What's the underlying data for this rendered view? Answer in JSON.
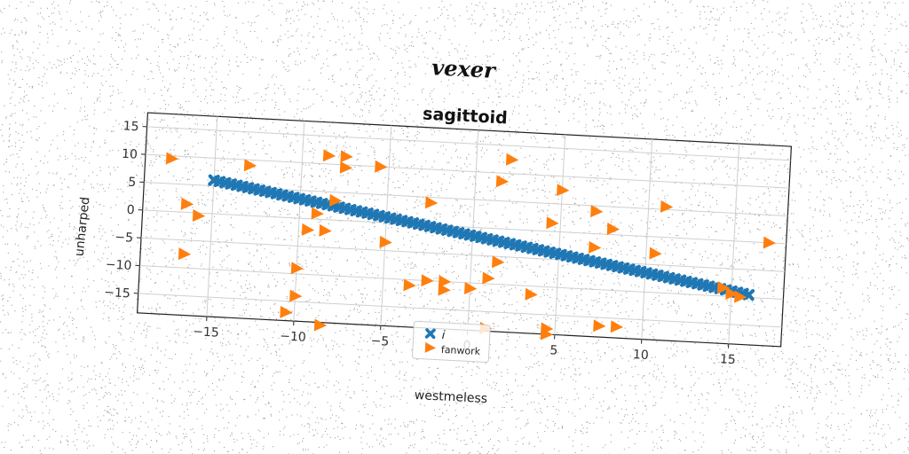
{
  "chart_data": {
    "type": "scatter",
    "suptitle": "vexer",
    "title": "sagittoid",
    "xlabel": "westmeless",
    "ylabel": "unharped",
    "xlim": [
      -19,
      18
    ],
    "ylim": [
      -18.5,
      17.5
    ],
    "xticks": [
      -15,
      -10,
      -5,
      0,
      5,
      10,
      15
    ],
    "yticks": [
      15,
      10,
      5,
      0,
      -5,
      -10,
      -15
    ],
    "xtick_labels": [
      "−15",
      "−10",
      "−5",
      "0",
      "5",
      "10",
      "15"
    ],
    "ytick_labels": [
      "15",
      "10",
      "5",
      "0",
      "−5",
      "−10",
      "−15"
    ],
    "grid": true,
    "legend_placement": "lower center",
    "series": [
      {
        "name": "i",
        "marker": "x",
        "color": "#1f77b4",
        "line": {
          "x_start": -15,
          "x_end": 16,
          "y_start": 6,
          "y_end": -9.5,
          "count": 95
        }
      },
      {
        "name": "fanwork",
        "marker": ">",
        "color": "#ff7f0e",
        "points": [
          [
            -17.5,
            9.5
          ],
          [
            -16.5,
            1.5
          ],
          [
            -15.8,
            -0.5
          ],
          [
            -16.5,
            -7.5
          ],
          [
            -13,
            9
          ],
          [
            -8.5,
            11.5
          ],
          [
            -7.5,
            11.5
          ],
          [
            -7.5,
            9.5
          ],
          [
            -5.5,
            10
          ],
          [
            -8,
            3.5
          ],
          [
            -9,
            1
          ],
          [
            -9.5,
            -2
          ],
          [
            -8.5,
            -2
          ],
          [
            -10,
            -9
          ],
          [
            -10,
            -14
          ],
          [
            -10.5,
            -17
          ],
          [
            -8.5,
            -19
          ],
          [
            -5,
            -3.5
          ],
          [
            -2.5,
            4
          ],
          [
            -3.5,
            -11
          ],
          [
            -2.5,
            -10
          ],
          [
            -1.5,
            -10
          ],
          [
            -1.5,
            -11.5
          ],
          [
            0,
            -11
          ],
          [
            1,
            -9
          ],
          [
            1.5,
            -6
          ],
          [
            2,
            12.5
          ],
          [
            1.5,
            8.5
          ],
          [
            3.5,
            -11.5
          ],
          [
            4.5,
            1.5
          ],
          [
            5,
            7.5
          ],
          [
            7,
            4
          ],
          [
            8,
            1
          ],
          [
            7,
            -2.5
          ],
          [
            10.5,
            -3
          ],
          [
            11,
            5.5
          ],
          [
            17,
            0
          ],
          [
            14.5,
            -8.5
          ],
          [
            15,
            -9.5
          ],
          [
            15.5,
            -10
          ],
          [
            4.5,
            -17.5
          ],
          [
            4.5,
            -18.5
          ],
          [
            7.5,
            -16.5
          ],
          [
            8.5,
            -16.5
          ],
          [
            1,
            -18
          ]
        ]
      }
    ]
  }
}
